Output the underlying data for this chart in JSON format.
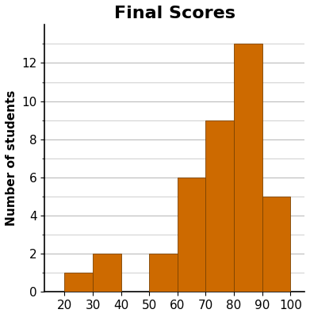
{
  "title": "Final Scores",
  "ylabel": "Number of students",
  "bar_color": "#CD6A00",
  "edge_color": "#7B4200",
  "bin_left": [
    10,
    20,
    30,
    40,
    50,
    60,
    70,
    80,
    90
  ],
  "counts": [
    0,
    1,
    2,
    0,
    2,
    6,
    9,
    13,
    5
  ],
  "xlim": [
    13,
    105
  ],
  "ylim": [
    0,
    14
  ],
  "yticks_major": [
    0,
    2,
    4,
    6,
    8,
    10,
    12
  ],
  "yticks_minor": [
    0,
    1,
    2,
    3,
    4,
    5,
    6,
    7,
    8,
    9,
    10,
    11,
    12,
    13
  ],
  "xticks": [
    20,
    30,
    40,
    50,
    60,
    70,
    80,
    90,
    100
  ],
  "title_fontsize": 16,
  "title_fontweight": "bold",
  "ylabel_fontsize": 11,
  "ylabel_fontweight": "bold",
  "tick_fontsize": 11,
  "grid_color": "#bbbbbb",
  "bg_color": "#ffffff"
}
